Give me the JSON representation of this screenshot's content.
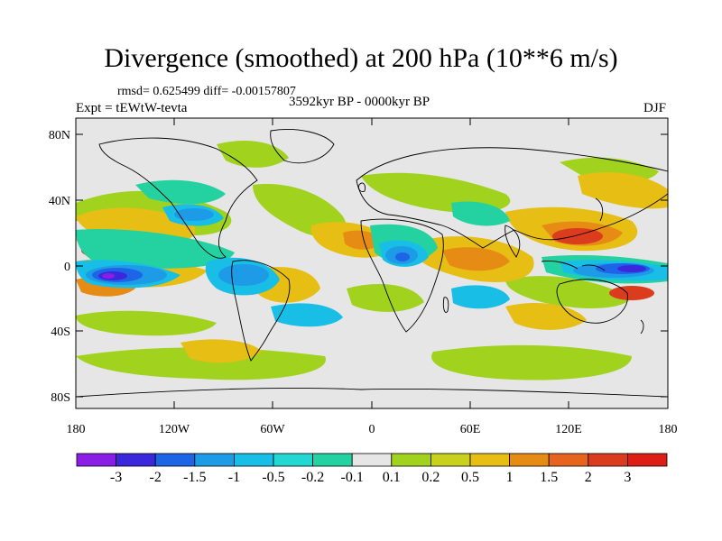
{
  "header": {
    "title": "Divergence (smoothed) at 200 hPa (10**6 m/s)",
    "stats": "rmsd= 0.625499 diff= -0.00157807",
    "experiment": "Expt = tEWtW-tevta",
    "period": "3592kyr BP - 0000kyr BP",
    "season": "DJF"
  },
  "axes": {
    "y_labels": [
      "80N",
      "40N",
      "0",
      "40S",
      "80S"
    ],
    "x_labels": [
      "180",
      "120W",
      "60W",
      "0",
      "60E",
      "120E",
      "180"
    ]
  },
  "colorbar": {
    "labels": [
      "-3",
      "-2",
      "-1.5",
      "-1",
      "-0.5",
      "-0.2",
      "-0.1",
      "0.1",
      "0.2",
      "0.5",
      "1",
      "1.5",
      "2",
      "3"
    ],
    "colors": [
      "#8a1ee6",
      "#3c28dc",
      "#1e64e6",
      "#1e9be6",
      "#19bee6",
      "#23d7d2",
      "#23d2a0",
      "#e6e6e6",
      "#a0d21e",
      "#c8d21e",
      "#e6be14",
      "#e68c14",
      "#e6641e",
      "#dc3c1e",
      "#dc1e14"
    ]
  }
}
